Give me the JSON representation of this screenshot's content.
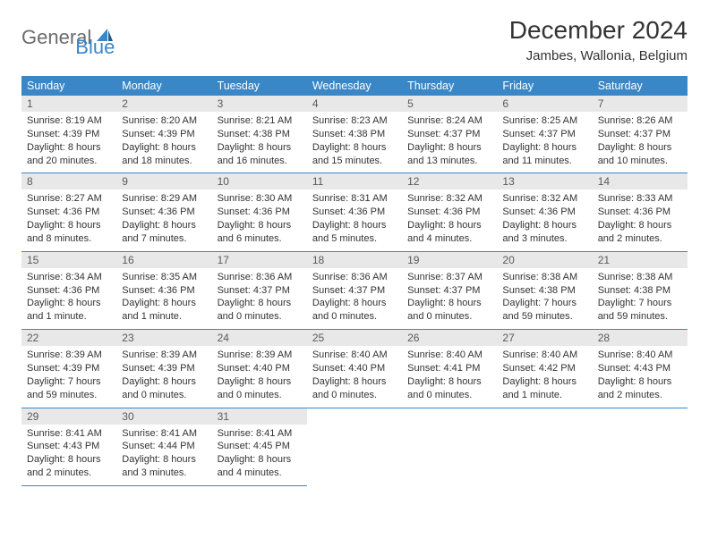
{
  "logo": {
    "general": "General",
    "blue": "Blue"
  },
  "title": "December 2024",
  "location": "Jambes, Wallonia, Belgium",
  "colors": {
    "header_bg": "#3a87c7",
    "header_fg": "#ffffff",
    "daynum_bg": "#e8e8e8",
    "daynum_fg": "#5a5a5a",
    "border": "#3a87c7",
    "text": "#333333",
    "logo_grey": "#6b6b6b",
    "logo_blue": "#3a87c7"
  },
  "weekdays": [
    "Sunday",
    "Monday",
    "Tuesday",
    "Wednesday",
    "Thursday",
    "Friday",
    "Saturday"
  ],
  "weeks": [
    [
      {
        "n": "1",
        "sunrise": "8:19 AM",
        "sunset": "4:39 PM",
        "daylight": "8 hours and 20 minutes."
      },
      {
        "n": "2",
        "sunrise": "8:20 AM",
        "sunset": "4:39 PM",
        "daylight": "8 hours and 18 minutes."
      },
      {
        "n": "3",
        "sunrise": "8:21 AM",
        "sunset": "4:38 PM",
        "daylight": "8 hours and 16 minutes."
      },
      {
        "n": "4",
        "sunrise": "8:23 AM",
        "sunset": "4:38 PM",
        "daylight": "8 hours and 15 minutes."
      },
      {
        "n": "5",
        "sunrise": "8:24 AM",
        "sunset": "4:37 PM",
        "daylight": "8 hours and 13 minutes."
      },
      {
        "n": "6",
        "sunrise": "8:25 AM",
        "sunset": "4:37 PM",
        "daylight": "8 hours and 11 minutes."
      },
      {
        "n": "7",
        "sunrise": "8:26 AM",
        "sunset": "4:37 PM",
        "daylight": "8 hours and 10 minutes."
      }
    ],
    [
      {
        "n": "8",
        "sunrise": "8:27 AM",
        "sunset": "4:36 PM",
        "daylight": "8 hours and 8 minutes."
      },
      {
        "n": "9",
        "sunrise": "8:29 AM",
        "sunset": "4:36 PM",
        "daylight": "8 hours and 7 minutes."
      },
      {
        "n": "10",
        "sunrise": "8:30 AM",
        "sunset": "4:36 PM",
        "daylight": "8 hours and 6 minutes."
      },
      {
        "n": "11",
        "sunrise": "8:31 AM",
        "sunset": "4:36 PM",
        "daylight": "8 hours and 5 minutes."
      },
      {
        "n": "12",
        "sunrise": "8:32 AM",
        "sunset": "4:36 PM",
        "daylight": "8 hours and 4 minutes."
      },
      {
        "n": "13",
        "sunrise": "8:32 AM",
        "sunset": "4:36 PM",
        "daylight": "8 hours and 3 minutes."
      },
      {
        "n": "14",
        "sunrise": "8:33 AM",
        "sunset": "4:36 PM",
        "daylight": "8 hours and 2 minutes."
      }
    ],
    [
      {
        "n": "15",
        "sunrise": "8:34 AM",
        "sunset": "4:36 PM",
        "daylight": "8 hours and 1 minute."
      },
      {
        "n": "16",
        "sunrise": "8:35 AM",
        "sunset": "4:36 PM",
        "daylight": "8 hours and 1 minute."
      },
      {
        "n": "17",
        "sunrise": "8:36 AM",
        "sunset": "4:37 PM",
        "daylight": "8 hours and 0 minutes."
      },
      {
        "n": "18",
        "sunrise": "8:36 AM",
        "sunset": "4:37 PM",
        "daylight": "8 hours and 0 minutes."
      },
      {
        "n": "19",
        "sunrise": "8:37 AM",
        "sunset": "4:37 PM",
        "daylight": "8 hours and 0 minutes."
      },
      {
        "n": "20",
        "sunrise": "8:38 AM",
        "sunset": "4:38 PM",
        "daylight": "7 hours and 59 minutes."
      },
      {
        "n": "21",
        "sunrise": "8:38 AM",
        "sunset": "4:38 PM",
        "daylight": "7 hours and 59 minutes."
      }
    ],
    [
      {
        "n": "22",
        "sunrise": "8:39 AM",
        "sunset": "4:39 PM",
        "daylight": "7 hours and 59 minutes."
      },
      {
        "n": "23",
        "sunrise": "8:39 AM",
        "sunset": "4:39 PM",
        "daylight": "8 hours and 0 minutes."
      },
      {
        "n": "24",
        "sunrise": "8:39 AM",
        "sunset": "4:40 PM",
        "daylight": "8 hours and 0 minutes."
      },
      {
        "n": "25",
        "sunrise": "8:40 AM",
        "sunset": "4:40 PM",
        "daylight": "8 hours and 0 minutes."
      },
      {
        "n": "26",
        "sunrise": "8:40 AM",
        "sunset": "4:41 PM",
        "daylight": "8 hours and 0 minutes."
      },
      {
        "n": "27",
        "sunrise": "8:40 AM",
        "sunset": "4:42 PM",
        "daylight": "8 hours and 1 minute."
      },
      {
        "n": "28",
        "sunrise": "8:40 AM",
        "sunset": "4:43 PM",
        "daylight": "8 hours and 2 minutes."
      }
    ],
    [
      {
        "n": "29",
        "sunrise": "8:41 AM",
        "sunset": "4:43 PM",
        "daylight": "8 hours and 2 minutes."
      },
      {
        "n": "30",
        "sunrise": "8:41 AM",
        "sunset": "4:44 PM",
        "daylight": "8 hours and 3 minutes."
      },
      {
        "n": "31",
        "sunrise": "8:41 AM",
        "sunset": "4:45 PM",
        "daylight": "8 hours and 4 minutes."
      },
      null,
      null,
      null,
      null
    ]
  ],
  "labels": {
    "sunrise": "Sunrise:",
    "sunset": "Sunset:",
    "daylight": "Daylight:"
  }
}
